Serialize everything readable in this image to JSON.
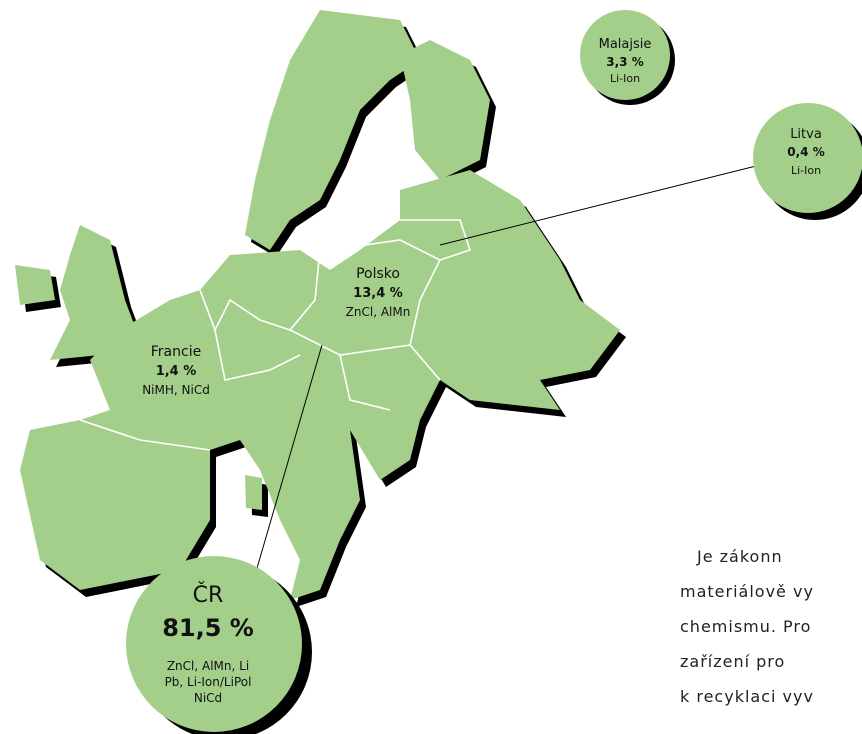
{
  "regions": [
    {
      "name": "Malajsie",
      "share": "3,3 %",
      "types": [
        "Li-Ion"
      ]
    },
    {
      "name": "Litva",
      "share": "0,4 %",
      "types": [
        "Li-Ion"
      ]
    },
    {
      "name": "Polsko",
      "share": "13,4 %",
      "types": [
        "ZnCl, AlMn"
      ]
    },
    {
      "name": "Francie",
      "share": "1,4 %",
      "types": [
        "NiMH, NiCd"
      ]
    },
    {
      "name": "ČR",
      "share": "81,5 %",
      "types": [
        "ZnCl, AlMn, Li",
        "Pb, Li-Ion/LiPol",
        "NiCd"
      ]
    }
  ],
  "text_lines": [
    "Je zákonn",
    "materiálově vy",
    "chemismu. Pro",
    "zařízení pro",
    "k recyklaci vyv"
  ]
}
